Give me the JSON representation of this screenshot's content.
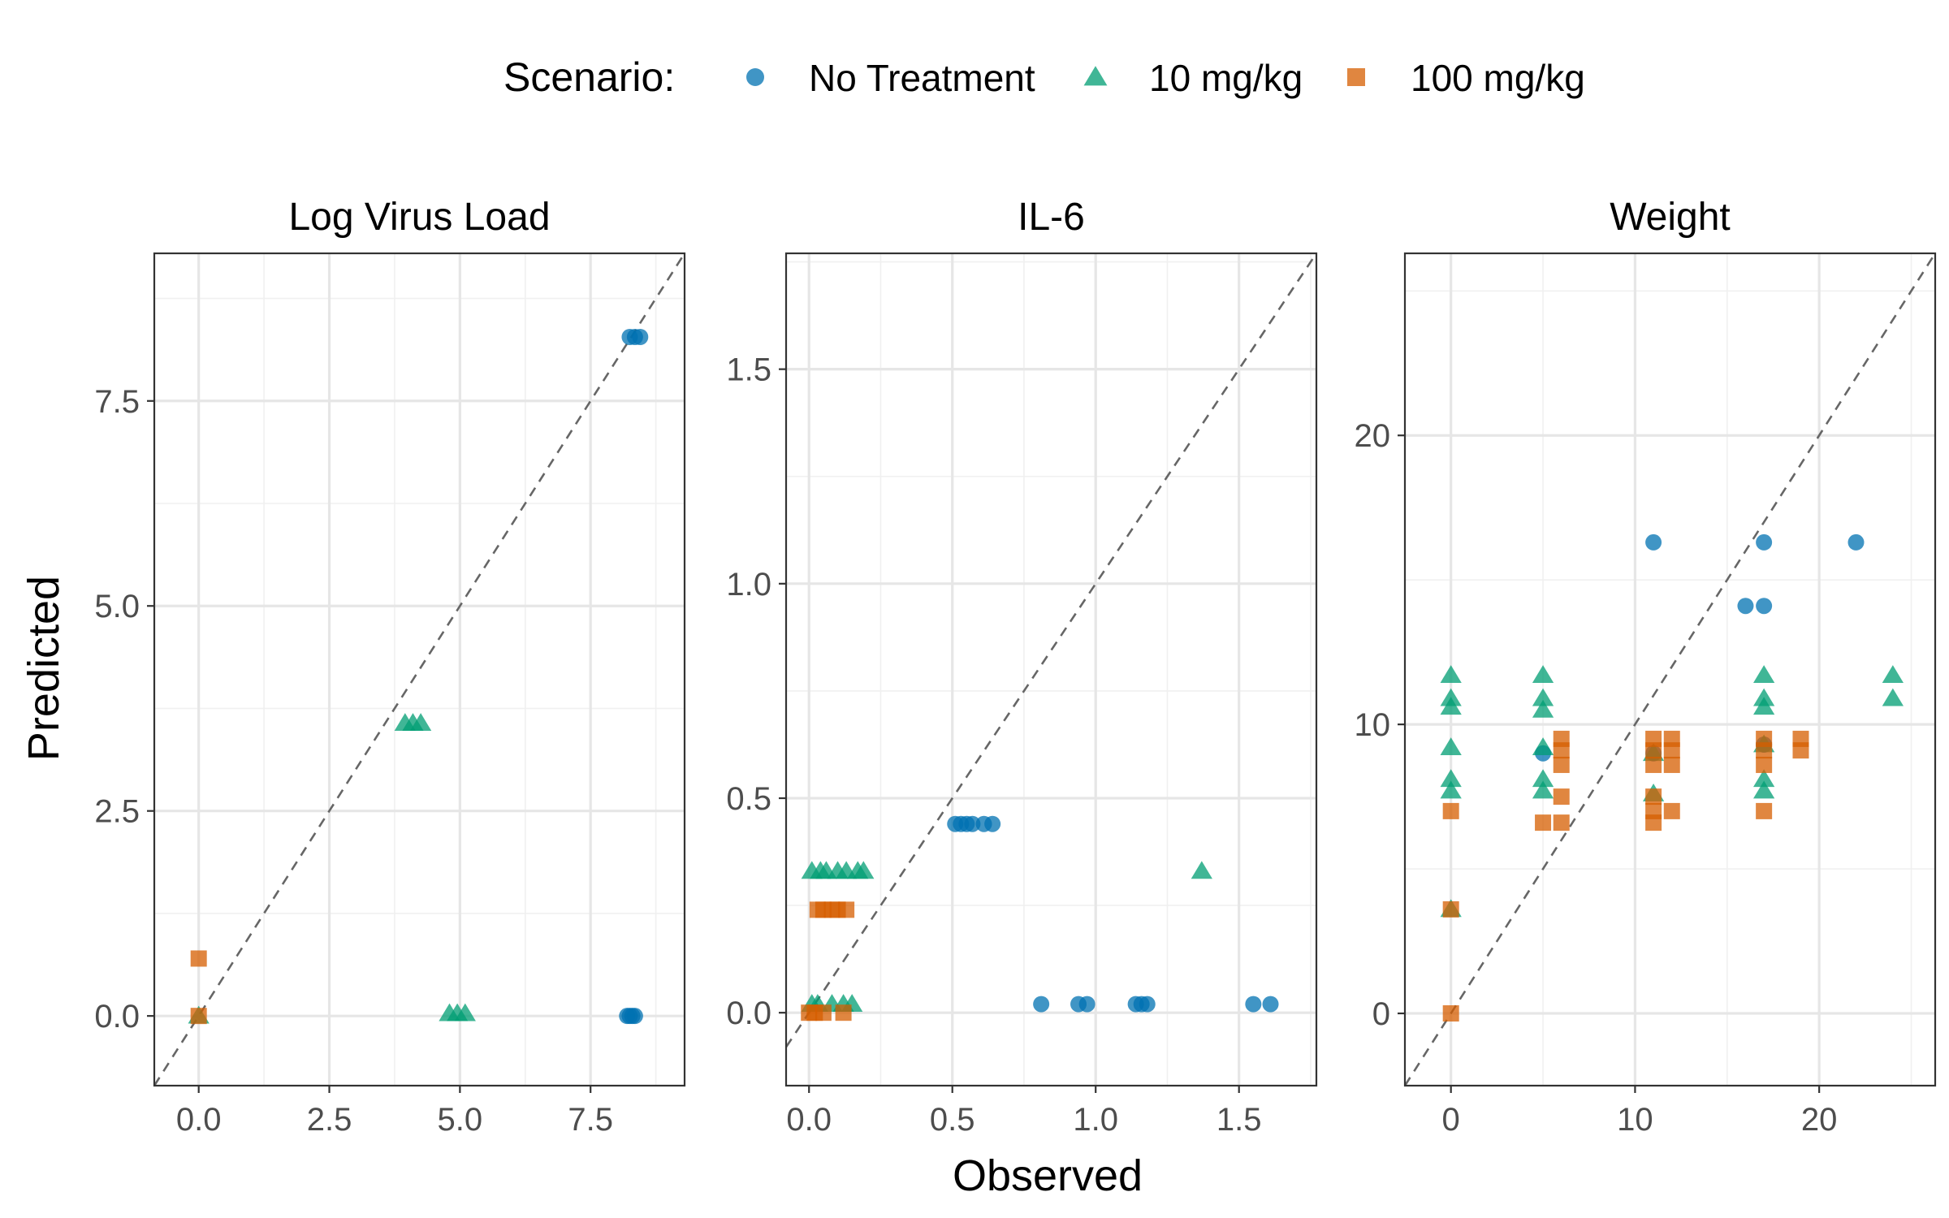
{
  "legend": {
    "title": "Scenario:",
    "placement": "top",
    "items": [
      {
        "label": "No Treatment",
        "color": "#0072B2",
        "shape": "circle"
      },
      {
        "label": "10 mg/kg",
        "color": "#009E73",
        "shape": "triangle"
      },
      {
        "label": "100 mg/kg",
        "color": "#D55E00",
        "shape": "square"
      }
    ]
  },
  "axes": {
    "xlabel": "Observed",
    "ylabel": "Predicted"
  },
  "chart_data": [
    {
      "type": "scatter",
      "title": "Log Virus Load",
      "xlim": [
        -0.85,
        9.3
      ],
      "ylim": [
        -0.85,
        9.3
      ],
      "xticks": [
        "0.0",
        "2.5",
        "5.0",
        "7.5"
      ],
      "xtick_values": [
        0,
        2.5,
        5,
        7.5
      ],
      "yticks": [
        "0.0",
        "2.5",
        "5.0",
        "7.5"
      ],
      "ytick_values": [
        0,
        2.5,
        5,
        7.5
      ],
      "identity_line": true,
      "grid": true,
      "series": [
        {
          "name": "No Treatment",
          "points": [
            [
              8.25,
              8.28
            ],
            [
              8.35,
              8.28
            ],
            [
              8.45,
              8.28
            ],
            [
              8.2,
              0.0
            ],
            [
              8.25,
              0.0
            ],
            [
              8.3,
              0.0
            ],
            [
              8.35,
              0.0
            ]
          ]
        },
        {
          "name": "10 mg/kg",
          "points": [
            [
              3.95,
              3.57
            ],
            [
              4.1,
              3.57
            ],
            [
              4.25,
              3.57
            ],
            [
              4.8,
              0.03
            ],
            [
              4.95,
              0.03
            ],
            [
              5.1,
              0.03
            ],
            [
              0.0,
              0.0
            ]
          ]
        },
        {
          "name": "100 mg/kg",
          "points": [
            [
              0.0,
              0.7
            ],
            [
              0.0,
              0.0
            ]
          ]
        }
      ]
    },
    {
      "type": "scatter",
      "title": "IL-6",
      "xlim": [
        -0.08,
        1.77
      ],
      "ylim": [
        -0.17,
        1.77
      ],
      "xticks": [
        "0.0",
        "0.5",
        "1.0",
        "1.5"
      ],
      "xtick_values": [
        0,
        0.5,
        1.0,
        1.5
      ],
      "yticks": [
        "0.0",
        "0.5",
        "1.0",
        "1.5"
      ],
      "ytick_values": [
        0,
        0.5,
        1.0,
        1.5
      ],
      "identity_line": true,
      "grid": true,
      "series": [
        {
          "name": "No Treatment",
          "points": [
            [
              0.51,
              0.44
            ],
            [
              0.53,
              0.44
            ],
            [
              0.55,
              0.44
            ],
            [
              0.57,
              0.44
            ],
            [
              0.61,
              0.44
            ],
            [
              0.64,
              0.44
            ],
            [
              0.81,
              0.02
            ],
            [
              0.94,
              0.02
            ],
            [
              0.97,
              0.02
            ],
            [
              1.14,
              0.02
            ],
            [
              1.16,
              0.02
            ],
            [
              1.18,
              0.02
            ],
            [
              1.55,
              0.02
            ],
            [
              1.61,
              0.02
            ]
          ]
        },
        {
          "name": "10 mg/kg",
          "points": [
            [
              0.01,
              0.33
            ],
            [
              0.04,
              0.33
            ],
            [
              0.06,
              0.33
            ],
            [
              0.1,
              0.33
            ],
            [
              0.13,
              0.33
            ],
            [
              0.17,
              0.33
            ],
            [
              0.19,
              0.33
            ],
            [
              0.01,
              0.02
            ],
            [
              0.03,
              0.02
            ],
            [
              0.08,
              0.02
            ],
            [
              0.12,
              0.02
            ],
            [
              0.15,
              0.02
            ],
            [
              1.37,
              0.33
            ]
          ]
        },
        {
          "name": "100 mg/kg",
          "points": [
            [
              0.03,
              0.24
            ],
            [
              0.05,
              0.24
            ],
            [
              0.08,
              0.24
            ],
            [
              0.1,
              0.24
            ],
            [
              0.13,
              0.24
            ],
            [
              0.0,
              0.0
            ],
            [
              0.02,
              0.0
            ],
            [
              0.05,
              0.0
            ],
            [
              0.12,
              0.0
            ]
          ]
        }
      ]
    },
    {
      "type": "scatter",
      "title": "Weight",
      "xlim": [
        -2.5,
        26.3
      ],
      "ylim": [
        -2.5,
        26.3
      ],
      "xticks": [
        "0",
        "10",
        "20"
      ],
      "xtick_values": [
        0,
        10,
        20
      ],
      "yticks": [
        "0",
        "10",
        "20"
      ],
      "ytick_values": [
        0,
        10,
        20
      ],
      "identity_line": true,
      "grid": true,
      "series": [
        {
          "name": "No Treatment",
          "points": [
            [
              11,
              16.3
            ],
            [
              17,
              16.3
            ],
            [
              22,
              16.3
            ],
            [
              16,
              14.1
            ],
            [
              17,
              14.1
            ],
            [
              5,
              9.0
            ],
            [
              11,
              9.0
            ],
            [
              17,
              9.3
            ]
          ]
        },
        {
          "name": "10 mg/kg",
          "points": [
            [
              0,
              11.7
            ],
            [
              0,
              10.9
            ],
            [
              0,
              10.6
            ],
            [
              0,
              9.2
            ],
            [
              0,
              8.1
            ],
            [
              0,
              7.7
            ],
            [
              0,
              3.6
            ],
            [
              5,
              11.7
            ],
            [
              5,
              10.9
            ],
            [
              5,
              10.5
            ],
            [
              5,
              9.2
            ],
            [
              5,
              8.1
            ],
            [
              5,
              7.7
            ],
            [
              11,
              9.0
            ],
            [
              11,
              7.6
            ],
            [
              17,
              11.7
            ],
            [
              17,
              10.9
            ],
            [
              17,
              10.6
            ],
            [
              17,
              9.3
            ],
            [
              17,
              8.1
            ],
            [
              17,
              7.7
            ],
            [
              24,
              11.7
            ],
            [
              24,
              10.9
            ]
          ]
        },
        {
          "name": "100 mg/kg",
          "points": [
            [
              0,
              7.0
            ],
            [
              0,
              3.6
            ],
            [
              0,
              0.0
            ],
            [
              5,
              6.6
            ],
            [
              6,
              9.5
            ],
            [
              6,
              9.1
            ],
            [
              6,
              8.6
            ],
            [
              6,
              7.5
            ],
            [
              6,
              6.6
            ],
            [
              11,
              9.5
            ],
            [
              11,
              9.1
            ],
            [
              11,
              8.6
            ],
            [
              11,
              7.5
            ],
            [
              11,
              7.0
            ],
            [
              11,
              6.6
            ],
            [
              12,
              9.5
            ],
            [
              12,
              9.1
            ],
            [
              12,
              8.6
            ],
            [
              12,
              7.0
            ],
            [
              17,
              9.5
            ],
            [
              17,
              9.1
            ],
            [
              17,
              8.6
            ],
            [
              17,
              7.0
            ],
            [
              19,
              9.5
            ],
            [
              19,
              9.1
            ]
          ]
        }
      ]
    }
  ]
}
